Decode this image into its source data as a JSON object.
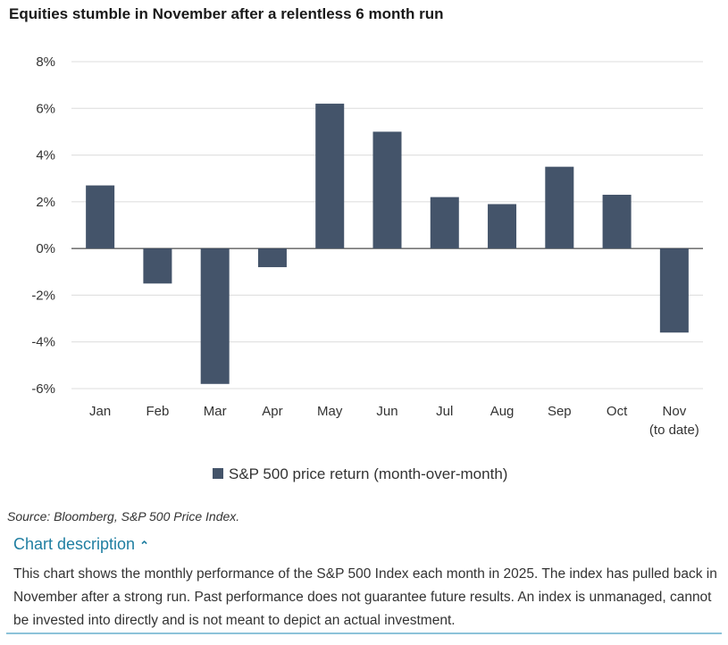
{
  "chart_data": {
    "type": "bar",
    "title": "Equities stumble in November after a relentless 6 month run",
    "categories": [
      "Jan",
      "Feb",
      "Mar",
      "Apr",
      "May",
      "Jun",
      "Jul",
      "Aug",
      "Sep",
      "Oct",
      "Nov"
    ],
    "category_sublabels": {
      "Nov": "(to date)"
    },
    "series": [
      {
        "name": "S&P 500 price return (month-over-month)",
        "values": [
          2.7,
          -1.5,
          -5.8,
          -0.8,
          6.2,
          5.0,
          2.2,
          1.9,
          3.5,
          2.3,
          -3.6
        ]
      }
    ],
    "ylim": [
      -6,
      8
    ],
    "yticks": [
      8,
      6,
      4,
      2,
      0,
      -2,
      -4,
      -6
    ],
    "ytick_labels": [
      "8%",
      "6%",
      "4%",
      "2%",
      "0%",
      "-2%",
      "-4%",
      "-6%"
    ],
    "xlabel": "",
    "ylabel": "",
    "grid": true,
    "legend": "bottom-center",
    "bar_color": "#44546a"
  },
  "source": "Source: Bloomberg, S&P 500 Price Index.",
  "description": {
    "toggle_label": "Chart description",
    "text": "This chart shows the monthly performance of the S&P 500 Index each month in 2025. The index has pulled back in November after a strong run. Past performance does not guarantee future results. An index is unmanaged, cannot be invested into directly and is not meant to depict an actual investment."
  }
}
